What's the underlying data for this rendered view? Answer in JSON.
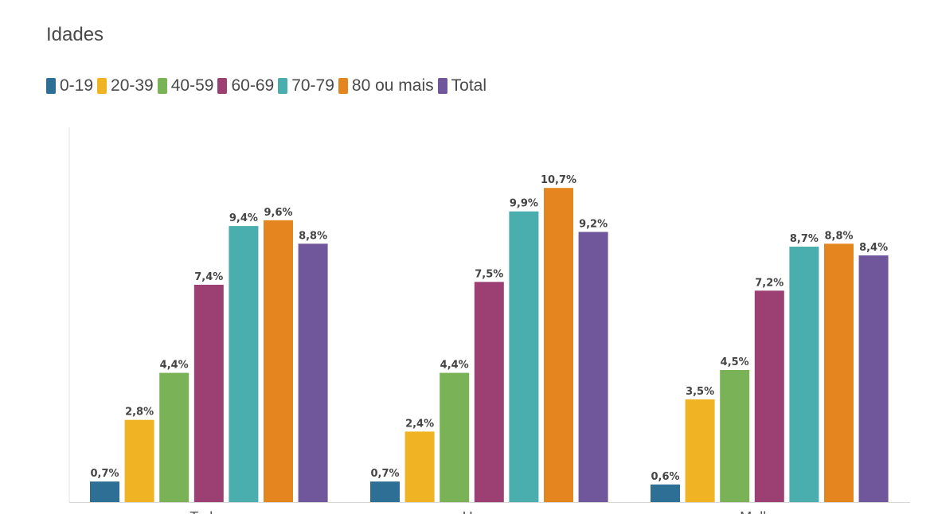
{
  "chart_data": {
    "type": "bar",
    "title": "Idades",
    "categories": [
      "Todos",
      "Homens",
      "Mulheres"
    ],
    "series": [
      {
        "name": "0-19",
        "color": "#2e6f96",
        "values": [
          0.7,
          0.7,
          0.6
        ],
        "labels": [
          "0,7%",
          "0,7%",
          "0,6%"
        ]
      },
      {
        "name": "20-39",
        "color": "#f0b323",
        "values": [
          2.8,
          2.4,
          3.5
        ],
        "labels": [
          "2,8%",
          "2,4%",
          "3,5%"
        ]
      },
      {
        "name": "40-59",
        "color": "#7ab357",
        "values": [
          4.4,
          4.4,
          4.5
        ],
        "labels": [
          "4,4%",
          "4,4%",
          "4,5%"
        ]
      },
      {
        "name": "60-69",
        "color": "#9c3f73",
        "values": [
          7.4,
          7.5,
          7.2
        ],
        "labels": [
          "7,4%",
          "7,5%",
          "7,2%"
        ]
      },
      {
        "name": "70-79",
        "color": "#4aaeae",
        "values": [
          9.4,
          9.9,
          8.7
        ],
        "labels": [
          "9,4%",
          "9,9%",
          "8,7%"
        ]
      },
      {
        "name": "80 ou mais",
        "color": "#e5851f",
        "values": [
          9.6,
          10.7,
          8.8
        ],
        "labels": [
          "9,6%",
          "10,7%",
          "8,8%"
        ]
      },
      {
        "name": "Total",
        "color": "#70569a",
        "values": [
          8.8,
          9.2,
          8.4
        ],
        "labels": [
          "8,8%",
          "9,2%",
          "8,4%"
        ]
      }
    ],
    "ylim": [
      0,
      11.8
    ],
    "grid": false,
    "legend_position": "top-left"
  }
}
